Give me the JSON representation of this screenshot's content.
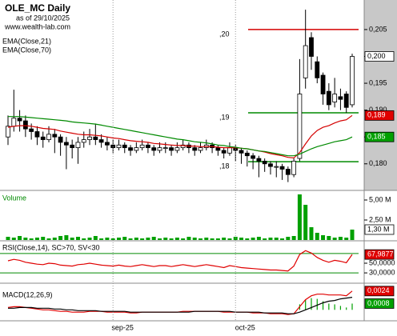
{
  "chart_data": [
    {
      "type": "candlestick",
      "title": "OLE_MC Daily",
      "subtitle": "as of 29/10/2025",
      "source": "www.wealth-lab.com",
      "ylim": [
        0.1752,
        0.2105
      ],
      "yticks": [
        {
          "value": 0.205,
          "label": "0,205"
        },
        {
          "value": 0.2,
          "label": "0,200"
        },
        {
          "value": 0.195,
          "label": "0,195"
        },
        {
          "value": 0.19,
          "label": "0,190"
        },
        {
          "value": 0.185,
          "label": "0,185"
        },
        {
          "value": 0.18,
          "label": "0,180"
        }
      ],
      "open": [
        0.185,
        0.187,
        0.1885,
        0.188,
        0.1865,
        0.186,
        0.185,
        0.1845,
        0.1855,
        0.185,
        0.184,
        0.1835,
        0.183,
        0.184,
        0.1845,
        0.185,
        0.1845,
        0.184,
        0.1835,
        0.183,
        0.1835,
        0.183,
        0.1825,
        0.183,
        0.1835,
        0.183,
        0.1825,
        0.183,
        0.183,
        0.1825,
        0.183,
        0.1835,
        0.183,
        0.1825,
        0.183,
        0.1835,
        0.183,
        0.1825,
        0.182,
        0.183,
        0.1825,
        0.182,
        0.1815,
        0.181,
        0.1805,
        0.18,
        0.1795,
        0.1795,
        0.179,
        0.178,
        0.181,
        0.196,
        0.2035,
        0.199,
        0.1965,
        0.1935,
        0.1915,
        0.1925,
        0.193,
        0.191
      ],
      "high": [
        0.189,
        0.1938,
        0.19,
        0.189,
        0.1875,
        0.187,
        0.186,
        0.187,
        0.1865,
        0.1855,
        0.185,
        0.1845,
        0.185,
        0.186,
        0.1865,
        0.1875,
        0.1855,
        0.185,
        0.1845,
        0.1845,
        0.184,
        0.1835,
        0.184,
        0.1845,
        0.184,
        0.1835,
        0.184,
        0.184,
        0.1835,
        0.184,
        0.1845,
        0.184,
        0.1835,
        0.184,
        0.1845,
        0.184,
        0.1835,
        0.183,
        0.184,
        0.1835,
        0.183,
        0.1825,
        0.182,
        0.1815,
        0.181,
        0.1805,
        0.1805,
        0.18,
        0.1795,
        0.181,
        0.1995,
        0.2087,
        0.2045,
        0.2,
        0.197,
        0.195,
        0.196,
        0.194,
        0.1935,
        0.2005
      ],
      "low": [
        0.1835,
        0.186,
        0.186,
        0.185,
        0.1845,
        0.1835,
        0.183,
        0.184,
        0.182,
        0.1815,
        0.179,
        0.181,
        0.18,
        0.183,
        0.1835,
        0.1835,
        0.183,
        0.1825,
        0.182,
        0.1825,
        0.182,
        0.1815,
        0.182,
        0.1825,
        0.182,
        0.1815,
        0.182,
        0.182,
        0.1815,
        0.182,
        0.1825,
        0.182,
        0.1815,
        0.182,
        0.1825,
        0.182,
        0.1815,
        0.181,
        0.1815,
        0.1805,
        0.18,
        0.1795,
        0.179,
        0.1775,
        0.1785,
        0.178,
        0.1775,
        0.177,
        0.1766,
        0.1775,
        0.1805,
        0.194,
        0.1975,
        0.195,
        0.191,
        0.19,
        0.1905,
        0.19,
        0.1895,
        0.1905
      ],
      "close": [
        0.187,
        0.1885,
        0.188,
        0.1865,
        0.186,
        0.185,
        0.1845,
        0.1855,
        0.185,
        0.184,
        0.1835,
        0.183,
        0.184,
        0.1845,
        0.185,
        0.1845,
        0.184,
        0.1835,
        0.183,
        0.1835,
        0.183,
        0.1825,
        0.183,
        0.1835,
        0.183,
        0.1825,
        0.183,
        0.183,
        0.1825,
        0.183,
        0.1835,
        0.183,
        0.1825,
        0.183,
        0.1835,
        0.183,
        0.1825,
        0.182,
        0.183,
        0.1825,
        0.182,
        0.1815,
        0.181,
        0.1805,
        0.18,
        0.1795,
        0.1795,
        0.179,
        0.178,
        0.1805,
        0.193,
        0.202,
        0.2,
        0.196,
        0.193,
        0.191,
        0.193,
        0.192,
        0.1905,
        0.2
      ],
      "series": [
        {
          "name": "EMA(Close,21)",
          "color": "#d40000",
          "values": [
            0.1868,
            0.187,
            0.1871,
            0.1871,
            0.187,
            0.1868,
            0.1866,
            0.1865,
            0.1864,
            0.1861,
            0.1859,
            0.1857,
            0.1855,
            0.1854,
            0.1854,
            0.1853,
            0.1852,
            0.185,
            0.1848,
            0.1847,
            0.1845,
            0.1843,
            0.1842,
            0.1841,
            0.184,
            0.1838,
            0.1837,
            0.1836,
            0.1835,
            0.1834,
            0.1834,
            0.1833,
            0.1833,
            0.1832,
            0.1832,
            0.1832,
            0.1831,
            0.183,
            0.183,
            0.183,
            0.1829,
            0.1828,
            0.1826,
            0.1824,
            0.1822,
            0.1819,
            0.1817,
            0.1815,
            0.1812,
            0.1811,
            0.1821,
            0.1837,
            0.1852,
            0.1862,
            0.1868,
            0.1871,
            0.1876,
            0.188,
            0.1882,
            0.189
          ]
        },
        {
          "name": "EMA(Close,70)",
          "color": "#008a00",
          "values": [
            0.1888,
            0.1888,
            0.1888,
            0.1887,
            0.1886,
            0.1885,
            0.1884,
            0.1883,
            0.1882,
            0.1881,
            0.188,
            0.1878,
            0.1877,
            0.1876,
            0.1875,
            0.1874,
            0.1872,
            0.187,
            0.1868,
            0.1866,
            0.1864,
            0.1862,
            0.186,
            0.1858,
            0.1856,
            0.1854,
            0.1852,
            0.185,
            0.1848,
            0.1846,
            0.1845,
            0.1843,
            0.1841,
            0.184,
            0.1839,
            0.1837,
            0.1835,
            0.1834,
            0.1832,
            0.1831,
            0.1829,
            0.1828,
            0.1826,
            0.1824,
            0.1823,
            0.1821,
            0.1819,
            0.1817,
            0.1815,
            0.1815,
            0.1818,
            0.1823,
            0.1828,
            0.1832,
            0.1835,
            0.1838,
            0.1841,
            0.1843,
            0.1845,
            0.185
          ]
        }
      ],
      "levels": [
        {
          "value": 0.205,
          "label": ",20",
          "color": "#d40000"
        },
        {
          "value": 0.1895,
          "label": ",19",
          "color": "#008a00"
        },
        {
          "value": 0.1804,
          "label": ",18",
          "color": "#008a00"
        }
      ],
      "last_labels": [
        {
          "value": 0.2,
          "label": "0,200",
          "color": "#ffffff"
        },
        {
          "value": 0.189,
          "label": "0,189",
          "color": "#e00000"
        },
        {
          "value": 0.185,
          "label": "0,185",
          "color": "#00a000"
        }
      ]
    },
    {
      "type": "bar",
      "ylim": [
        0,
        6
      ],
      "yticks": [
        {
          "value": 5,
          "label": "5,00 M"
        },
        {
          "value": 2.5,
          "label": "2,50 M"
        }
      ],
      "series": [
        {
          "name": "Volume",
          "color": "#00a000",
          "values": [
            0.4,
            0.3,
            0.5,
            0.3,
            0.2,
            0.3,
            0.4,
            0.2,
            0.3,
            0.5,
            0.6,
            0.3,
            0.4,
            0.2,
            0.3,
            0.5,
            0.2,
            0.3,
            0.2,
            0.3,
            0.4,
            0.2,
            0.3,
            0.2,
            0.3,
            0.4,
            0.2,
            0.3,
            0.2,
            0.3,
            0.2,
            0.4,
            0.3,
            0.2,
            0.3,
            0.2,
            0.2,
            0.3,
            0.2,
            0.4,
            0.3,
            0.2,
            0.3,
            0.4,
            0.2,
            0.3,
            0.3,
            0.2,
            0.4,
            0.5,
            5.7,
            4.4,
            1.6,
            0.9,
            0.6,
            0.5,
            0.3,
            0.4,
            0.3,
            1.3
          ]
        }
      ],
      "last_labels": [
        {
          "value": 1.3,
          "label": "1,30 M",
          "color": "#ffffff"
        }
      ]
    },
    {
      "type": "line",
      "ylim": [
        12,
        93
      ],
      "yticks": [
        {
          "value": 50,
          "label": "50,0000"
        },
        {
          "value": 30,
          "label": "30,0000"
        }
      ],
      "series": [
        {
          "name": "RSI(Close,14), SC>70, SV<30",
          "color": "#e00000",
          "values": [
            55,
            58,
            56,
            52,
            50,
            48,
            47,
            50,
            49,
            46,
            45,
            44,
            47,
            48,
            50,
            48,
            46,
            45,
            44,
            46,
            44,
            43,
            45,
            47,
            45,
            43,
            45,
            45,
            43,
            45,
            47,
            45,
            43,
            45,
            47,
            45,
            43,
            41,
            45,
            43,
            41,
            40,
            39,
            38,
            37,
            36,
            36,
            35,
            34,
            44,
            68,
            76,
            71,
            62,
            56,
            52,
            56,
            54,
            51,
            67.9877
          ]
        }
      ],
      "levels": [
        {
          "value": 70,
          "color": "#008a00"
        },
        {
          "value": 30,
          "color": "#008a00"
        }
      ],
      "last_labels": [
        {
          "value": 67.9877,
          "label": "67,9877",
          "color": "#e00000"
        }
      ]
    },
    {
      "type": "line",
      "ylim": [
        -0.0013,
        0.0032
      ],
      "series": [
        {
          "name": "MACD(12,26,9)",
          "color": "#e00000",
          "values": [
            0.0003,
            0.0004,
            0.0004,
            0.0003,
            0.0002,
            0.0001,
            0,
            0,
            -0.0001,
            -0.0002,
            -0.0002,
            -0.0003,
            -0.0003,
            -0.0003,
            -0.0002,
            -0.0002,
            -0.0002,
            -0.0003,
            -0.0003,
            -0.0003,
            -0.0003,
            -0.0004,
            -0.0004,
            -0.0003,
            -0.0003,
            -0.0003,
            -0.0003,
            -0.0003,
            -0.0003,
            -0.0003,
            -0.0002,
            -0.0002,
            -0.0002,
            -0.0002,
            -0.0002,
            -0.0002,
            -0.0002,
            -0.0003,
            -0.0003,
            -0.0003,
            -0.0003,
            -0.0003,
            -0.0004,
            -0.0004,
            -0.0004,
            -0.0005,
            -0.0005,
            -0.0005,
            -0.0006,
            -0.0005,
            0.0004,
            0.0013,
            0.0018,
            0.002,
            0.002,
            0.0019,
            0.0019,
            0.0019,
            0.0018,
            0.0024
          ]
        },
        {
          "color": "#000000",
          "values": [
            0.0002,
            0.0002,
            0.0003,
            0.0003,
            0.0003,
            0.0002,
            0.0002,
            0.0002,
            0.0001,
            0.0001,
            0,
            0,
            -0.0001,
            -0.0001,
            -0.0001,
            -0.0001,
            -0.0002,
            -0.0002,
            -0.0002,
            -0.0002,
            -0.0002,
            -0.0003,
            -0.0003,
            -0.0003,
            -0.0003,
            -0.0003,
            -0.0003,
            -0.0003,
            -0.0003,
            -0.0003,
            -0.0003,
            -0.0003,
            -0.0002,
            -0.0002,
            -0.0002,
            -0.0002,
            -0.0002,
            -0.0002,
            -0.0002,
            -0.0003,
            -0.0003,
            -0.0003,
            -0.0003,
            -0.0003,
            -0.0004,
            -0.0004,
            -0.0004,
            -0.0004,
            -0.0005,
            -0.0005,
            -0.0003,
            0,
            0.0003,
            0.0006,
            0.0009,
            0.0011,
            0.0012,
            0.0014,
            0.0015,
            0.0016
          ]
        }
      ],
      "histogram": {
        "color": "#00a000",
        "values": [
          null,
          null,
          null,
          null,
          null,
          null,
          null,
          null,
          null,
          null,
          null,
          null,
          null,
          null,
          null,
          null,
          null,
          null,
          null,
          null,
          null,
          null,
          null,
          null,
          null,
          null,
          null,
          null,
          null,
          null,
          null,
          null,
          null,
          null,
          null,
          null,
          null,
          null,
          null,
          null,
          null,
          null,
          null,
          null,
          null,
          null,
          null,
          null,
          null,
          null,
          0.0007,
          0.0013,
          0.0015,
          0.0014,
          0.0011,
          0.0008,
          0.0007,
          0.0005,
          0.0003,
          0.0008
        ]
      },
      "last_labels": [
        {
          "value": 0.0024,
          "label": "0,0024",
          "color": "#e00000"
        },
        {
          "value": 0.0008,
          "label": "0,0008",
          "color": "#00a000"
        }
      ],
      "xticks": [
        {
          "value": 18,
          "label": "sep-25"
        },
        {
          "value": 39,
          "label": "oct-25"
        }
      ]
    }
  ]
}
